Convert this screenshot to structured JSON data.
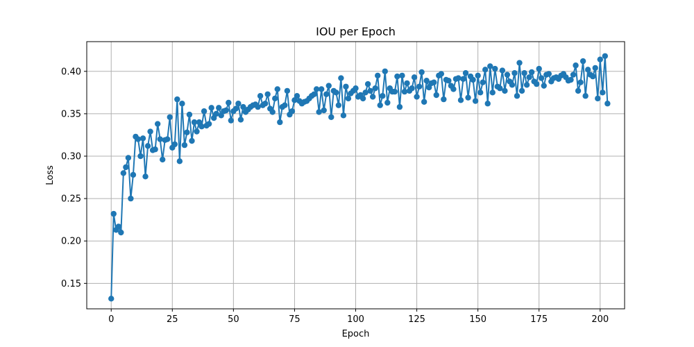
{
  "chart_data": {
    "type": "line",
    "title": "IOU per Epoch",
    "xlabel": "Epoch",
    "ylabel": "Loss",
    "xlim": [
      -10,
      210
    ],
    "ylim": [
      0.12,
      0.435
    ],
    "xticks": [
      0,
      25,
      50,
      75,
      100,
      125,
      150,
      175,
      200
    ],
    "yticks": [
      0.15,
      0.2,
      0.25,
      0.3,
      0.35,
      0.4
    ],
    "grid": true,
    "marker": "circle",
    "color": "#1f77b4",
    "series": [
      {
        "values": [
          0.132,
          0.232,
          0.213,
          0.217,
          0.21,
          0.28,
          0.287,
          0.298,
          0.25,
          0.278,
          0.323,
          0.32,
          0.3,
          0.321,
          0.276,
          0.312,
          0.329,
          0.307,
          0.308,
          0.338,
          0.32,
          0.296,
          0.319,
          0.32,
          0.346,
          0.31,
          0.314,
          0.367,
          0.294,
          0.362,
          0.313,
          0.328,
          0.349,
          0.318,
          0.34,
          0.329,
          0.34,
          0.335,
          0.353,
          0.336,
          0.338,
          0.357,
          0.345,
          0.35,
          0.357,
          0.348,
          0.353,
          0.354,
          0.363,
          0.342,
          0.353,
          0.356,
          0.362,
          0.343,
          0.358,
          0.352,
          0.355,
          0.358,
          0.36,
          0.361,
          0.358,
          0.371,
          0.36,
          0.362,
          0.373,
          0.356,
          0.352,
          0.368,
          0.379,
          0.34,
          0.358,
          0.36,
          0.377,
          0.349,
          0.353,
          0.366,
          0.371,
          0.365,
          0.362,
          0.364,
          0.365,
          0.368,
          0.371,
          0.373,
          0.379,
          0.352,
          0.379,
          0.354,
          0.373,
          0.383,
          0.346,
          0.377,
          0.375,
          0.36,
          0.392,
          0.348,
          0.382,
          0.368,
          0.374,
          0.377,
          0.38,
          0.37,
          0.372,
          0.368,
          0.375,
          0.385,
          0.377,
          0.37,
          0.38,
          0.395,
          0.36,
          0.371,
          0.4,
          0.363,
          0.38,
          0.376,
          0.376,
          0.394,
          0.358,
          0.395,
          0.376,
          0.386,
          0.377,
          0.38,
          0.393,
          0.37,
          0.382,
          0.399,
          0.364,
          0.389,
          0.381,
          0.386,
          0.387,
          0.372,
          0.395,
          0.397,
          0.367,
          0.39,
          0.389,
          0.383,
          0.379,
          0.391,
          0.392,
          0.366,
          0.391,
          0.398,
          0.369,
          0.394,
          0.39,
          0.365,
          0.395,
          0.375,
          0.387,
          0.402,
          0.362,
          0.406,
          0.375,
          0.403,
          0.382,
          0.38,
          0.401,
          0.377,
          0.396,
          0.388,
          0.384,
          0.398,
          0.371,
          0.41,
          0.377,
          0.398,
          0.384,
          0.393,
          0.399,
          0.388,
          0.385,
          0.403,
          0.392,
          0.383,
          0.396,
          0.397,
          0.388,
          0.392,
          0.393,
          0.391,
          0.395,
          0.397,
          0.393,
          0.389,
          0.39,
          0.396,
          0.407,
          0.377,
          0.387,
          0.412,
          0.371,
          0.402,
          0.396,
          0.394,
          0.404,
          0.368,
          0.414,
          0.375,
          0.418,
          0.362
        ]
      }
    ]
  }
}
